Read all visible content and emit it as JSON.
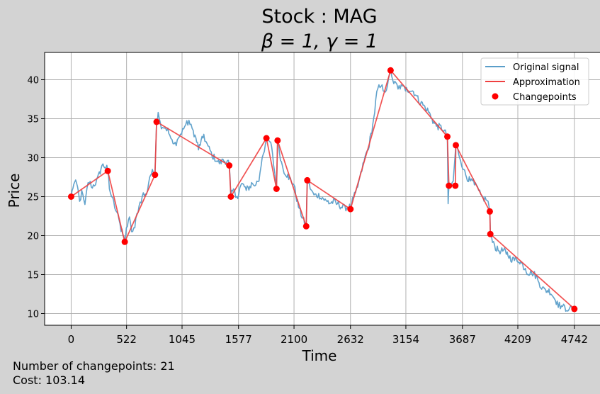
{
  "chart_data": {
    "type": "line",
    "title_line1": "Stock : MAG",
    "title_line2": "β = 1, γ = 1",
    "xlabel": "Time",
    "ylabel": "Price",
    "xlim": [
      -250,
      4990
    ],
    "ylim": [
      8.5,
      43.5
    ],
    "xticks": [
      0,
      522,
      1045,
      1577,
      2100,
      2632,
      3154,
      3687,
      4209,
      4742
    ],
    "yticks": [
      10,
      15,
      20,
      25,
      30,
      35,
      40
    ],
    "grid": true,
    "legend_position": "top-right",
    "legend": [
      "Original signal",
      "Approximation",
      "Changepoints"
    ],
    "colors": {
      "signal": "#5a9ec9",
      "approx": "#ef4040",
      "changepoint": "#ff0000",
      "grid": "#b0b0b0",
      "background": "#d3d3d3",
      "plot_bg": "#ffffff"
    },
    "changepoints": {
      "x": [
        0,
        345,
        505,
        790,
        805,
        1490,
        1505,
        1840,
        1935,
        1945,
        2215,
        2225,
        2632,
        3010,
        3545,
        3560,
        3620,
        3625,
        3945,
        3950,
        4742
      ],
      "y": [
        25.0,
        28.3,
        19.2,
        27.8,
        34.6,
        29.0,
        25.0,
        32.5,
        26.0,
        32.2,
        21.2,
        27.1,
        23.4,
        41.2,
        32.7,
        26.4,
        26.4,
        31.6,
        23.1,
        20.2,
        10.6
      ]
    },
    "approx_segments": [
      [
        [
          0,
          25.0
        ],
        [
          345,
          28.3
        ]
      ],
      [
        [
          345,
          28.3
        ],
        [
          505,
          19.2
        ]
      ],
      [
        [
          505,
          19.2
        ],
        [
          790,
          27.8
        ]
      ],
      [
        [
          790,
          27.8
        ],
        [
          805,
          34.6
        ]
      ],
      [
        [
          805,
          34.6
        ],
        [
          1490,
          29.0
        ]
      ],
      [
        [
          1490,
          29.0
        ],
        [
          1505,
          25.0
        ]
      ],
      [
        [
          1505,
          25.0
        ],
        [
          1840,
          32.5
        ]
      ],
      [
        [
          1840,
          32.5
        ],
        [
          1935,
          26.0
        ]
      ],
      [
        [
          1935,
          26.0
        ],
        [
          1945,
          32.2
        ]
      ],
      [
        [
          1945,
          32.2
        ],
        [
          2215,
          21.2
        ]
      ],
      [
        [
          2215,
          21.2
        ],
        [
          2225,
          27.1
        ]
      ],
      [
        [
          2225,
          27.1
        ],
        [
          2632,
          23.4
        ]
      ],
      [
        [
          2632,
          23.4
        ],
        [
          3010,
          41.2
        ]
      ],
      [
        [
          3010,
          41.2
        ],
        [
          3545,
          32.7
        ]
      ],
      [
        [
          3545,
          32.7
        ],
        [
          3560,
          26.4
        ]
      ],
      [
        [
          3560,
          26.4
        ],
        [
          3620,
          26.4
        ]
      ],
      [
        [
          3620,
          26.4
        ],
        [
          3625,
          31.6
        ]
      ],
      [
        [
          3625,
          31.6
        ],
        [
          3945,
          23.1
        ]
      ],
      [
        [
          3945,
          23.1
        ],
        [
          3950,
          20.2
        ]
      ],
      [
        [
          3950,
          20.2
        ],
        [
          4742,
          10.6
        ]
      ]
    ],
    "signal_anchors": [
      [
        0,
        25.0
      ],
      [
        25,
        26.6
      ],
      [
        60,
        26.3
      ],
      [
        80,
        24.4
      ],
      [
        100,
        25.8
      ],
      [
        130,
        24.0
      ],
      [
        160,
        26.8
      ],
      [
        200,
        26.1
      ],
      [
        240,
        27.2
      ],
      [
        290,
        29.0
      ],
      [
        345,
        28.3
      ],
      [
        360,
        26.0
      ],
      [
        400,
        24.5
      ],
      [
        440,
        22.8
      ],
      [
        470,
        20.5
      ],
      [
        505,
        19.3
      ],
      [
        520,
        21.0
      ],
      [
        550,
        22.4
      ],
      [
        570,
        20.5
      ],
      [
        600,
        21.0
      ],
      [
        640,
        23.8
      ],
      [
        680,
        25.5
      ],
      [
        710,
        25.3
      ],
      [
        740,
        27.5
      ],
      [
        790,
        28.2
      ],
      [
        805,
        34.6
      ],
      [
        820,
        35.8
      ],
      [
        840,
        34.5
      ],
      [
        880,
        33.8
      ],
      [
        920,
        33.1
      ],
      [
        960,
        31.8
      ],
      [
        1000,
        32.3
      ],
      [
        1040,
        33.0
      ],
      [
        1070,
        34.0
      ],
      [
        1110,
        34.8
      ],
      [
        1150,
        33.5
      ],
      [
        1200,
        31.0
      ],
      [
        1250,
        33.0
      ],
      [
        1290,
        31.5
      ],
      [
        1330,
        30.0
      ],
      [
        1380,
        29.5
      ],
      [
        1430,
        29.8
      ],
      [
        1490,
        29.0
      ],
      [
        1505,
        25.0
      ],
      [
        1530,
        26.0
      ],
      [
        1560,
        25.0
      ],
      [
        1600,
        26.5
      ],
      [
        1650,
        25.8
      ],
      [
        1700,
        26.8
      ],
      [
        1740,
        26.5
      ],
      [
        1770,
        27.0
      ],
      [
        1800,
        30.0
      ],
      [
        1840,
        32.5
      ],
      [
        1880,
        32.0
      ],
      [
        1935,
        26.0
      ],
      [
        1945,
        32.2
      ],
      [
        1990,
        29.0
      ],
      [
        2050,
        27.2
      ],
      [
        2100,
        26.5
      ],
      [
        2150,
        23.5
      ],
      [
        2200,
        21.3
      ],
      [
        2215,
        21.2
      ],
      [
        2225,
        27.1
      ],
      [
        2280,
        25.5
      ],
      [
        2350,
        24.8
      ],
      [
        2420,
        24.5
      ],
      [
        2500,
        24.0
      ],
      [
        2580,
        23.8
      ],
      [
        2632,
        23.4
      ],
      [
        2680,
        25.5
      ],
      [
        2720,
        27.5
      ],
      [
        2760,
        29.5
      ],
      [
        2800,
        31.0
      ],
      [
        2850,
        35.0
      ],
      [
        2880,
        38.5
      ],
      [
        2910,
        39.0
      ],
      [
        2950,
        38.5
      ],
      [
        2980,
        39.2
      ],
      [
        3010,
        41.5
      ],
      [
        3040,
        39.5
      ],
      [
        3080,
        38.8
      ],
      [
        3120,
        39.2
      ],
      [
        3160,
        39.0
      ],
      [
        3200,
        38.5
      ],
      [
        3250,
        38.0
      ],
      [
        3300,
        37.2
      ],
      [
        3350,
        36.0
      ],
      [
        3400,
        35.0
      ],
      [
        3450,
        34.2
      ],
      [
        3500,
        33.5
      ],
      [
        3545,
        32.7
      ],
      [
        3552,
        24.1
      ],
      [
        3560,
        26.4
      ],
      [
        3600,
        27.0
      ],
      [
        3625,
        31.6
      ],
      [
        3660,
        30.0
      ],
      [
        3700,
        28.5
      ],
      [
        3760,
        27.0
      ],
      [
        3800,
        26.5
      ],
      [
        3840,
        25.8
      ],
      [
        3880,
        25.0
      ],
      [
        3920,
        24.5
      ],
      [
        3945,
        23.1
      ],
      [
        3950,
        20.2
      ],
      [
        3990,
        18.8
      ],
      [
        4050,
        18.0
      ],
      [
        4100,
        17.6
      ],
      [
        4160,
        17.2
      ],
      [
        4220,
        16.6
      ],
      [
        4280,
        15.8
      ],
      [
        4340,
        15.2
      ],
      [
        4400,
        14.2
      ],
      [
        4460,
        13.2
      ],
      [
        4520,
        12.5
      ],
      [
        4580,
        11.6
      ],
      [
        4620,
        11.0
      ],
      [
        4660,
        10.3
      ],
      [
        4700,
        10.8
      ],
      [
        4742,
        10.6
      ]
    ]
  },
  "footer": {
    "num_changepoints": "Number of changepoints: 21",
    "cost": "Cost: 103.14"
  }
}
